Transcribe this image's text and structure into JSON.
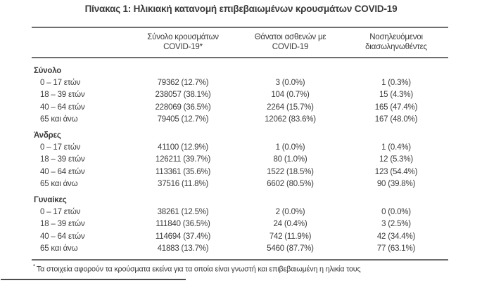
{
  "title": "Πίνακας 1: Ηλικιακή κατανομή επιβεβαιωμένων κρουσμάτων COVID-19",
  "table": {
    "columns": [
      {
        "line1": "",
        "line2": ""
      },
      {
        "line1": "Σύνολο κρουσμάτων",
        "line2": "COVID-19*"
      },
      {
        "line1": "Θάνατοι ασθενών με",
        "line2": "COVID-19"
      },
      {
        "line1": "Νοσηλευόμενοι",
        "line2": "διασωληνωθέντες"
      }
    ],
    "groups": [
      {
        "label": "Σύνολο",
        "rows": [
          {
            "age": "0 – 17 ετών",
            "cases": "79362 (12.7%)",
            "deaths": "3 (0.0%)",
            "intubated": "1 (0.3%)"
          },
          {
            "age": "18 – 39 ετών",
            "cases": "238057 (38.1%)",
            "deaths": "104 (0.7%)",
            "intubated": "15 (4.3%)"
          },
          {
            "age": "40 – 64 ετών",
            "cases": "228069 (36.5%)",
            "deaths": "2264 (15.7%)",
            "intubated": "165 (47.4%)"
          },
          {
            "age": "65 και άνω",
            "cases": "79405 (12.7%)",
            "deaths": "12062 (83.6%)",
            "intubated": "167 (48.0%)"
          }
        ]
      },
      {
        "label": "Άνδρες",
        "rows": [
          {
            "age": "0 – 17 ετών",
            "cases": "41100 (12.9%)",
            "deaths": "1 (0.0%)",
            "intubated": "1 (0.4%)"
          },
          {
            "age": "18 – 39 ετών",
            "cases": "126211 (39.7%)",
            "deaths": "80 (1.0%)",
            "intubated": "12 (5.3%)"
          },
          {
            "age": "40 – 64 ετών",
            "cases": "113361 (35.6%)",
            "deaths": "1522 (18.5%)",
            "intubated": "123 (54.4%)"
          },
          {
            "age": "65 και άνω",
            "cases": "37516 (11.8%)",
            "deaths": "6602 (80.5%)",
            "intubated": "90 (39.8%)"
          }
        ]
      },
      {
        "label": "Γυναίκες",
        "rows": [
          {
            "age": "0 – 17 ετών",
            "cases": "38261 (12.5%)",
            "deaths": "2 (0.0%)",
            "intubated": "0 (0.0%)"
          },
          {
            "age": "18 – 39 ετών",
            "cases": "111840 (36.5%)",
            "deaths": "24 (0.4%)",
            "intubated": "3 (2.5%)"
          },
          {
            "age": "40 – 64 ετών",
            "cases": "114694 (37.4%)",
            "deaths": "742 (11.9%)",
            "intubated": "42 (34.4%)"
          },
          {
            "age": "65 και άνω",
            "cases": "41883 (13.7%)",
            "deaths": "5460 (87.7%)",
            "intubated": "77 (63.1%)"
          }
        ]
      }
    ]
  },
  "footnote": {
    "marker": "*",
    "text": "Τα στοιχεία αφορούν τα κρούσματα εκείνα για τα οποία είναι γνωστή και επιβεβαιωμένη η ηλικία τους"
  },
  "colors": {
    "text": "#3b3b3b",
    "table_border": "#6e6e6e",
    "footer_separator": "#4d4d4d",
    "background": "#ffffff"
  }
}
